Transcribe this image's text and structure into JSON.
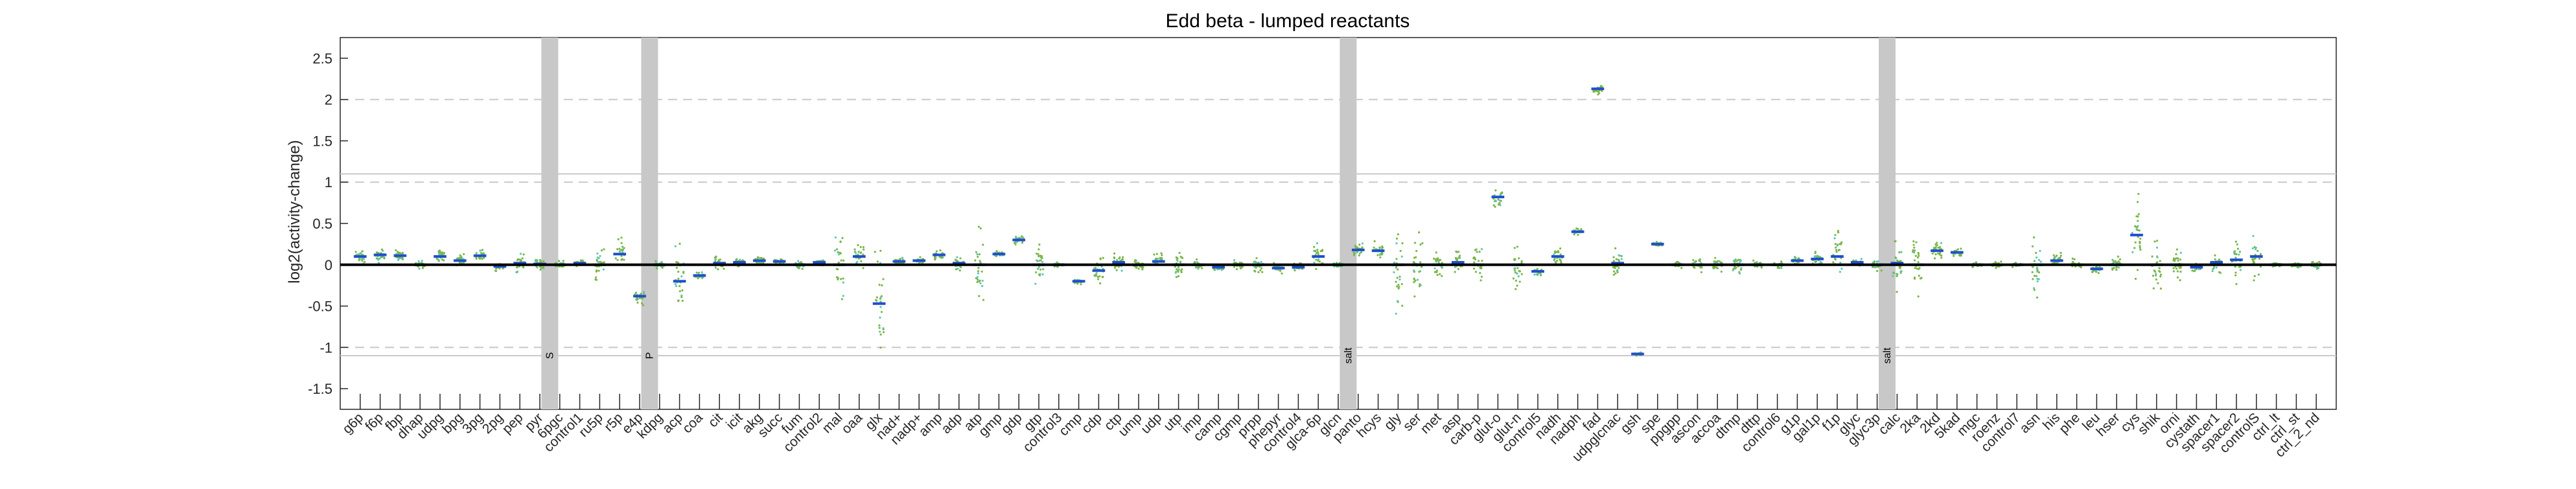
{
  "chart_data": {
    "type": "scatter",
    "title": "Edd beta - lumped reactants",
    "ylabel": "log2(activity-change)",
    "xlabel": "",
    "ylim": [
      -1.75,
      2.75
    ],
    "yticks": [
      "-1.5",
      "-1",
      "-0.5",
      "0",
      "0.5",
      "1",
      "1.5",
      "2",
      "2.5"
    ],
    "ytick_values": [
      -1.5,
      -1,
      -0.5,
      0,
      0.5,
      1,
      1.5,
      2,
      2.5
    ],
    "dashed_lines": [
      -1,
      1,
      2
    ],
    "solid_lines": [
      -1.1,
      1.1
    ],
    "zero_line": 0,
    "grid": false,
    "colors": {
      "points": "#7ab648",
      "points_alt": "#5ec7b5",
      "median": "#1f4fd1",
      "separator": "#c8c8c8",
      "zero_line": "#000000",
      "ref_lines": "#c8c8c8"
    },
    "categories": [
      "g6p",
      "f6p",
      "fbp",
      "dhap",
      "udpg",
      "bpg",
      "3pg",
      "2pg",
      "pep",
      "pyr",
      "6pgc",
      "control1",
      "ru5p",
      "r5p",
      "e4p",
      "kdpg",
      "acp",
      "coa",
      "cit",
      "icit",
      "akg",
      "succ",
      "fum",
      "control2",
      "mal",
      "oaa",
      "glx",
      "nad+",
      "nadp+",
      "amp",
      "adp",
      "atp",
      "gmp",
      "gdp",
      "gtp",
      "control3",
      "cmp",
      "cdp",
      "ctp",
      "ump",
      "udp",
      "utp",
      "imp",
      "camp",
      "cgmp",
      "prpp",
      "phepyr",
      "control4",
      "glca-6p",
      "glcn",
      "panto",
      "hcys",
      "gly",
      "ser",
      "met",
      "asp",
      "carb-p",
      "glut-o",
      "glut-n",
      "control5",
      "nadh",
      "nadph",
      "fad",
      "udpglcnac",
      "gsh",
      "spe",
      "ppgpp",
      "ascon",
      "accoa",
      "dtmp",
      "dttp",
      "control6",
      "g1p",
      "gal1p",
      "f1p",
      "glyc",
      "glyc3p",
      "calc",
      "2ka",
      "2kd",
      "5kad",
      "mgc",
      "roenz",
      "control7",
      "asn",
      "his",
      "phe",
      "leu",
      "hser",
      "cys",
      "shik",
      "orni",
      "cystath",
      "spacer1",
      "spacer2",
      "controlS",
      "ctrl_lt",
      "ctrl_st",
      "ctrl_2_nd"
    ],
    "medians": [
      0.1,
      0.12,
      0.11,
      0.0,
      0.1,
      0.05,
      0.11,
      -0.02,
      0.02,
      0.01,
      0.0,
      0.02,
      0.0,
      0.13,
      -0.38,
      0.0,
      -0.2,
      -0.13,
      0.02,
      0.03,
      0.05,
      0.04,
      0.0,
      0.03,
      0.0,
      0.1,
      -0.47,
      0.04,
      0.05,
      0.12,
      0.02,
      0.0,
      0.13,
      0.3,
      0.0,
      0.0,
      -0.2,
      -0.07,
      0.03,
      0.0,
      0.04,
      0.0,
      0.0,
      -0.03,
      0.0,
      0.0,
      -0.04,
      -0.03,
      0.1,
      0.0,
      0.18,
      0.17,
      0.0,
      0.0,
      0.0,
      0.03,
      0.0,
      0.82,
      0.0,
      -0.08,
      0.1,
      0.4,
      2.13,
      0.02,
      -1.08,
      0.25,
      0.0,
      0.0,
      0.0,
      0.0,
      0.0,
      0.0,
      0.05,
      0.07,
      0.1,
      0.03,
      0.0,
      0.02,
      0.0,
      0.17,
      0.15,
      0.0,
      0.0,
      0.0,
      0.0,
      0.05,
      0.0,
      -0.05,
      0.0,
      0.36,
      0.0,
      0.0,
      -0.03,
      0.03,
      0.06,
      0.1,
      0.0,
      0.0,
      0.0
    ],
    "spreads": [
      0.15,
      0.12,
      0.08,
      0.05,
      0.12,
      0.08,
      0.08,
      0.06,
      0.12,
      0.12,
      0.05,
      0.04,
      0.2,
      0.2,
      0.12,
      0.05,
      0.55,
      0.04,
      0.1,
      0.06,
      0.06,
      0.03,
      0.05,
      0.04,
      0.45,
      0.15,
      0.7,
      0.05,
      0.05,
      0.06,
      0.1,
      0.5,
      0.04,
      0.06,
      0.3,
      0.03,
      0.04,
      0.18,
      0.15,
      0.08,
      0.1,
      0.2,
      0.08,
      0.06,
      0.06,
      0.1,
      0.08,
      0.05,
      0.2,
      0.05,
      0.1,
      0.12,
      0.6,
      0.6,
      0.2,
      0.15,
      0.2,
      0.12,
      0.3,
      0.05,
      0.15,
      0.04,
      0.08,
      0.25,
      0.02,
      0.04,
      0.05,
      0.1,
      0.1,
      0.15,
      0.06,
      0.04,
      0.05,
      0.12,
      0.4,
      0.05,
      0.08,
      0.35,
      0.4,
      0.1,
      0.05,
      0.03,
      0.04,
      0.03,
      0.4,
      0.1,
      0.08,
      0.05,
      0.1,
      0.6,
      0.3,
      0.2,
      0.05,
      0.15,
      0.3,
      0.3,
      0.05,
      0.05,
      0.05
    ],
    "separators": [
      {
        "after_category": "pyr",
        "label": "S"
      },
      {
        "after_category": "e4p",
        "label": "P"
      },
      {
        "after_category": "glcn",
        "label": "salt"
      },
      {
        "after_category": "glyc3p",
        "label": "salt"
      }
    ]
  }
}
